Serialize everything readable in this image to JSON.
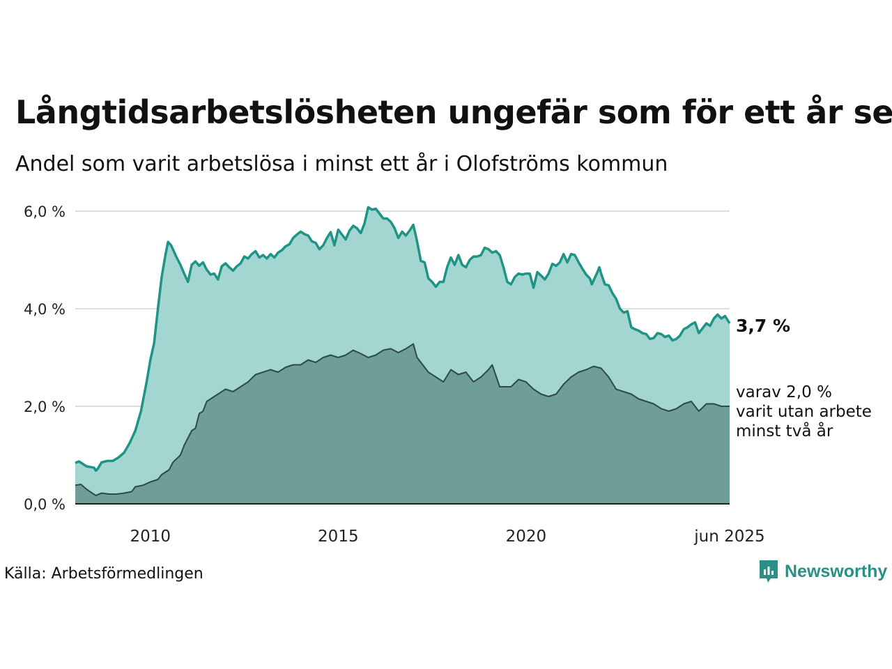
{
  "title": "Långtidsarbetslösheten ungefär som för ett år sen",
  "subtitle": "Andel som varit arbetslösa i minst ett år i Olofströms kommun",
  "source": "Källa: Arbetsförmedlingen",
  "brand": "Newsworthy",
  "colors": {
    "total_line": "#1e9486",
    "total_fill": "#a3d6d0",
    "sub_line": "#2e4a45",
    "sub_fill": "#6e9e97",
    "grid": "#dddddd",
    "axis": "#222222",
    "brand": "#2a8f84"
  },
  "chart_data": {
    "type": "area",
    "x_range": [
      2008.0,
      2025.42
    ],
    "ylim": [
      0,
      6.0
    ],
    "y_ticks": [
      {
        "value": 0,
        "label": "0,0 %"
      },
      {
        "value": 2,
        "label": "2,0 %"
      },
      {
        "value": 4,
        "label": "4,0 %"
      },
      {
        "value": 6,
        "label": "6,0 %"
      }
    ],
    "x_ticks": [
      {
        "value": 2010,
        "label": "2010"
      },
      {
        "value": 2015,
        "label": "2015"
      },
      {
        "value": 2020,
        "label": "2020"
      },
      {
        "value": 2025.42,
        "label": "jun 2025"
      }
    ],
    "grid": true,
    "end_label": "3,7 %",
    "sub_label": [
      "varav 2,0 %",
      "varit utan arbete",
      "minst två år"
    ],
    "series": [
      {
        "key": "total",
        "points": [
          [
            2008.0,
            0.84
          ],
          [
            2008.1,
            0.87
          ],
          [
            2008.3,
            0.77
          ],
          [
            2008.5,
            0.74
          ],
          [
            2008.55,
            0.68
          ],
          [
            2008.6,
            0.72
          ],
          [
            2008.7,
            0.85
          ],
          [
            2008.85,
            0.88
          ],
          [
            2009.0,
            0.88
          ],
          [
            2009.15,
            0.95
          ],
          [
            2009.3,
            1.05
          ],
          [
            2009.45,
            1.25
          ],
          [
            2009.6,
            1.5
          ],
          [
            2009.75,
            1.9
          ],
          [
            2009.9,
            2.5
          ],
          [
            2010.0,
            2.95
          ],
          [
            2010.1,
            3.3
          ],
          [
            2010.2,
            4.0
          ],
          [
            2010.3,
            4.65
          ],
          [
            2010.4,
            5.1
          ],
          [
            2010.47,
            5.37
          ],
          [
            2010.55,
            5.3
          ],
          [
            2010.7,
            5.05
          ],
          [
            2010.8,
            4.9
          ],
          [
            2010.9,
            4.72
          ],
          [
            2011.0,
            4.55
          ],
          [
            2011.1,
            4.9
          ],
          [
            2011.2,
            4.97
          ],
          [
            2011.3,
            4.88
          ],
          [
            2011.4,
            4.95
          ],
          [
            2011.5,
            4.8
          ],
          [
            2011.6,
            4.7
          ],
          [
            2011.7,
            4.72
          ],
          [
            2011.8,
            4.6
          ],
          [
            2011.9,
            4.87
          ],
          [
            2012.0,
            4.93
          ],
          [
            2012.1,
            4.85
          ],
          [
            2012.2,
            4.78
          ],
          [
            2012.3,
            4.87
          ],
          [
            2012.4,
            4.93
          ],
          [
            2012.5,
            5.07
          ],
          [
            2012.6,
            5.03
          ],
          [
            2012.7,
            5.12
          ],
          [
            2012.8,
            5.18
          ],
          [
            2012.9,
            5.05
          ],
          [
            2013.0,
            5.1
          ],
          [
            2013.1,
            5.03
          ],
          [
            2013.2,
            5.12
          ],
          [
            2013.3,
            5.05
          ],
          [
            2013.4,
            5.15
          ],
          [
            2013.5,
            5.2
          ],
          [
            2013.6,
            5.28
          ],
          [
            2013.7,
            5.32
          ],
          [
            2013.8,
            5.45
          ],
          [
            2013.9,
            5.52
          ],
          [
            2014.0,
            5.58
          ],
          [
            2014.1,
            5.53
          ],
          [
            2014.2,
            5.5
          ],
          [
            2014.3,
            5.38
          ],
          [
            2014.4,
            5.35
          ],
          [
            2014.5,
            5.22
          ],
          [
            2014.6,
            5.3
          ],
          [
            2014.7,
            5.45
          ],
          [
            2014.8,
            5.57
          ],
          [
            2014.9,
            5.3
          ],
          [
            2015.0,
            5.62
          ],
          [
            2015.1,
            5.52
          ],
          [
            2015.2,
            5.42
          ],
          [
            2015.3,
            5.6
          ],
          [
            2015.4,
            5.7
          ],
          [
            2015.5,
            5.65
          ],
          [
            2015.6,
            5.55
          ],
          [
            2015.7,
            5.75
          ],
          [
            2015.8,
            6.08
          ],
          [
            2015.9,
            6.03
          ],
          [
            2016.0,
            6.05
          ],
          [
            2016.1,
            5.95
          ],
          [
            2016.2,
            5.85
          ],
          [
            2016.3,
            5.85
          ],
          [
            2016.4,
            5.78
          ],
          [
            2016.5,
            5.65
          ],
          [
            2016.6,
            5.45
          ],
          [
            2016.7,
            5.58
          ],
          [
            2016.8,
            5.5
          ],
          [
            2016.9,
            5.6
          ],
          [
            2017.0,
            5.72
          ],
          [
            2017.1,
            5.38
          ],
          [
            2017.2,
            4.98
          ],
          [
            2017.3,
            4.95
          ],
          [
            2017.4,
            4.62
          ],
          [
            2017.5,
            4.55
          ],
          [
            2017.6,
            4.45
          ],
          [
            2017.7,
            4.55
          ],
          [
            2017.8,
            4.55
          ],
          [
            2017.9,
            4.85
          ],
          [
            2018.0,
            5.05
          ],
          [
            2018.1,
            4.9
          ],
          [
            2018.2,
            5.1
          ],
          [
            2018.3,
            4.9
          ],
          [
            2018.4,
            4.85
          ],
          [
            2018.5,
            5.0
          ],
          [
            2018.6,
            5.07
          ],
          [
            2018.7,
            5.07
          ],
          [
            2018.8,
            5.1
          ],
          [
            2018.9,
            5.25
          ],
          [
            2019.0,
            5.22
          ],
          [
            2019.1,
            5.15
          ],
          [
            2019.2,
            5.18
          ],
          [
            2019.3,
            5.1
          ],
          [
            2019.4,
            4.85
          ],
          [
            2019.5,
            4.55
          ],
          [
            2019.6,
            4.5
          ],
          [
            2019.7,
            4.65
          ],
          [
            2019.8,
            4.72
          ],
          [
            2019.9,
            4.7
          ],
          [
            2020.0,
            4.72
          ],
          [
            2020.1,
            4.72
          ],
          [
            2020.2,
            4.43
          ],
          [
            2020.3,
            4.75
          ],
          [
            2020.4,
            4.68
          ],
          [
            2020.5,
            4.6
          ],
          [
            2020.6,
            4.72
          ],
          [
            2020.7,
            4.92
          ],
          [
            2020.8,
            4.88
          ],
          [
            2020.9,
            4.95
          ],
          [
            2021.0,
            5.12
          ],
          [
            2021.1,
            4.95
          ],
          [
            2021.2,
            5.12
          ],
          [
            2021.3,
            5.1
          ],
          [
            2021.4,
            4.95
          ],
          [
            2021.5,
            4.82
          ],
          [
            2021.6,
            4.7
          ],
          [
            2021.7,
            4.62
          ],
          [
            2021.75,
            4.5
          ],
          [
            2021.9,
            4.75
          ],
          [
            2021.95,
            4.85
          ],
          [
            2022.0,
            4.72
          ],
          [
            2022.1,
            4.5
          ],
          [
            2022.2,
            4.48
          ],
          [
            2022.3,
            4.32
          ],
          [
            2022.4,
            4.2
          ],
          [
            2022.5,
            4.0
          ],
          [
            2022.6,
            3.92
          ],
          [
            2022.7,
            3.95
          ],
          [
            2022.8,
            3.62
          ],
          [
            2022.9,
            3.58
          ],
          [
            2023.0,
            3.55
          ],
          [
            2023.1,
            3.5
          ],
          [
            2023.2,
            3.48
          ],
          [
            2023.3,
            3.38
          ],
          [
            2023.4,
            3.4
          ],
          [
            2023.5,
            3.5
          ],
          [
            2023.6,
            3.48
          ],
          [
            2023.7,
            3.42
          ],
          [
            2023.8,
            3.45
          ],
          [
            2023.9,
            3.35
          ],
          [
            2024.0,
            3.38
          ],
          [
            2024.1,
            3.45
          ],
          [
            2024.2,
            3.58
          ],
          [
            2024.3,
            3.62
          ],
          [
            2024.4,
            3.68
          ],
          [
            2024.5,
            3.72
          ],
          [
            2024.6,
            3.5
          ],
          [
            2024.7,
            3.6
          ],
          [
            2024.8,
            3.7
          ],
          [
            2024.9,
            3.65
          ],
          [
            2025.0,
            3.8
          ],
          [
            2025.1,
            3.88
          ],
          [
            2025.2,
            3.8
          ],
          [
            2025.3,
            3.85
          ],
          [
            2025.42,
            3.7
          ]
        ]
      },
      {
        "key": "minst_tva_ar",
        "points": [
          [
            2008.0,
            0.38
          ],
          [
            2008.15,
            0.4
          ],
          [
            2008.3,
            0.3
          ],
          [
            2008.45,
            0.22
          ],
          [
            2008.55,
            0.17
          ],
          [
            2008.7,
            0.22
          ],
          [
            2008.9,
            0.2
          ],
          [
            2009.1,
            0.2
          ],
          [
            2009.3,
            0.22
          ],
          [
            2009.5,
            0.25
          ],
          [
            2009.6,
            0.35
          ],
          [
            2009.8,
            0.38
          ],
          [
            2010.0,
            0.45
          ],
          [
            2010.2,
            0.5
          ],
          [
            2010.3,
            0.6
          ],
          [
            2010.5,
            0.7
          ],
          [
            2010.6,
            0.85
          ],
          [
            2010.8,
            1.0
          ],
          [
            2010.9,
            1.2
          ],
          [
            2011.0,
            1.35
          ],
          [
            2011.1,
            1.5
          ],
          [
            2011.2,
            1.55
          ],
          [
            2011.3,
            1.85
          ],
          [
            2011.4,
            1.9
          ],
          [
            2011.5,
            2.1
          ],
          [
            2011.6,
            2.15
          ],
          [
            2011.7,
            2.2
          ],
          [
            2011.8,
            2.25
          ],
          [
            2012.0,
            2.35
          ],
          [
            2012.2,
            2.3
          ],
          [
            2012.4,
            2.4
          ],
          [
            2012.6,
            2.5
          ],
          [
            2012.8,
            2.65
          ],
          [
            2013.0,
            2.7
          ],
          [
            2013.2,
            2.75
          ],
          [
            2013.4,
            2.7
          ],
          [
            2013.6,
            2.8
          ],
          [
            2013.8,
            2.85
          ],
          [
            2014.0,
            2.85
          ],
          [
            2014.2,
            2.95
          ],
          [
            2014.4,
            2.9
          ],
          [
            2014.6,
            3.0
          ],
          [
            2014.8,
            3.05
          ],
          [
            2015.0,
            3.0
          ],
          [
            2015.2,
            3.05
          ],
          [
            2015.4,
            3.15
          ],
          [
            2015.6,
            3.08
          ],
          [
            2015.8,
            3.0
          ],
          [
            2016.0,
            3.05
          ],
          [
            2016.2,
            3.15
          ],
          [
            2016.4,
            3.18
          ],
          [
            2016.6,
            3.1
          ],
          [
            2016.8,
            3.18
          ],
          [
            2017.0,
            3.28
          ],
          [
            2017.1,
            3.0
          ],
          [
            2017.2,
            2.9
          ],
          [
            2017.4,
            2.7
          ],
          [
            2017.6,
            2.6
          ],
          [
            2017.8,
            2.5
          ],
          [
            2018.0,
            2.75
          ],
          [
            2018.2,
            2.65
          ],
          [
            2018.4,
            2.7
          ],
          [
            2018.6,
            2.5
          ],
          [
            2018.8,
            2.6
          ],
          [
            2019.0,
            2.75
          ],
          [
            2019.1,
            2.85
          ],
          [
            2019.3,
            2.4
          ],
          [
            2019.6,
            2.4
          ],
          [
            2019.8,
            2.55
          ],
          [
            2020.0,
            2.5
          ],
          [
            2020.2,
            2.35
          ],
          [
            2020.4,
            2.25
          ],
          [
            2020.6,
            2.2
          ],
          [
            2020.8,
            2.25
          ],
          [
            2021.0,
            2.45
          ],
          [
            2021.2,
            2.6
          ],
          [
            2021.4,
            2.7
          ],
          [
            2021.6,
            2.75
          ],
          [
            2021.8,
            2.82
          ],
          [
            2022.0,
            2.78
          ],
          [
            2022.2,
            2.6
          ],
          [
            2022.4,
            2.35
          ],
          [
            2022.6,
            2.3
          ],
          [
            2022.8,
            2.25
          ],
          [
            2023.0,
            2.15
          ],
          [
            2023.2,
            2.1
          ],
          [
            2023.4,
            2.05
          ],
          [
            2023.6,
            1.95
          ],
          [
            2023.8,
            1.9
          ],
          [
            2024.0,
            1.95
          ],
          [
            2024.2,
            2.05
          ],
          [
            2024.4,
            2.1
          ],
          [
            2024.6,
            1.9
          ],
          [
            2024.8,
            2.05
          ],
          [
            2025.0,
            2.05
          ],
          [
            2025.2,
            2.0
          ],
          [
            2025.42,
            2.0
          ]
        ]
      }
    ]
  }
}
